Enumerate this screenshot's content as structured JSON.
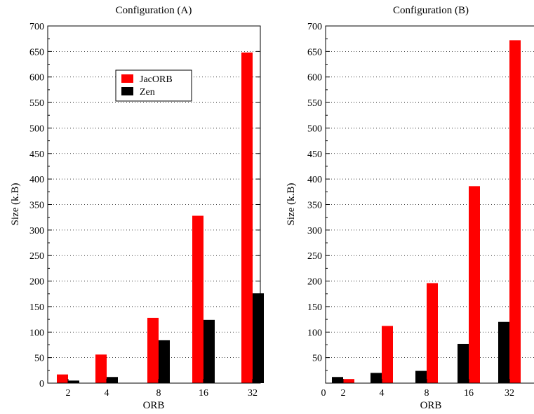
{
  "chart_data": [
    {
      "type": "bar",
      "title": "Configuration (A)",
      "xlabel": "ORB",
      "ylabel": "Size (k.B)",
      "ylim": [
        0,
        700
      ],
      "yticks": [
        0,
        50,
        100,
        150,
        200,
        250,
        300,
        350,
        400,
        450,
        500,
        550,
        600,
        650,
        700
      ],
      "categories": [
        "2",
        "4",
        "8",
        "16",
        "32"
      ],
      "series": [
        {
          "name": "JacORB",
          "color": "#ff0000",
          "values": [
            17,
            56,
            128,
            328,
            648
          ]
        },
        {
          "name": "Zen",
          "color": "#000000",
          "values": [
            5,
            12,
            84,
            124,
            176
          ]
        }
      ],
      "grid": "horizontal dotted",
      "legend": "upper-middle"
    },
    {
      "type": "bar",
      "title": "Configuration (B)",
      "xlabel": "ORB",
      "ylabel": "Size (k.B)",
      "ylim": [
        0,
        700
      ],
      "yticks": [
        50,
        100,
        150,
        200,
        250,
        300,
        350,
        400,
        450,
        500,
        550,
        600,
        650,
        700
      ],
      "xorigin_label": "0",
      "categories": [
        "2",
        "4",
        "8",
        "16",
        "32"
      ],
      "series": [
        {
          "name": "Zen",
          "color": "#000000",
          "values": [
            12,
            20,
            24,
            77,
            120
          ]
        },
        {
          "name": "JacORB",
          "color": "#ff0000",
          "values": [
            8,
            112,
            196,
            386,
            672
          ]
        }
      ],
      "grid": "horizontal dotted",
      "legend": "none"
    }
  ]
}
